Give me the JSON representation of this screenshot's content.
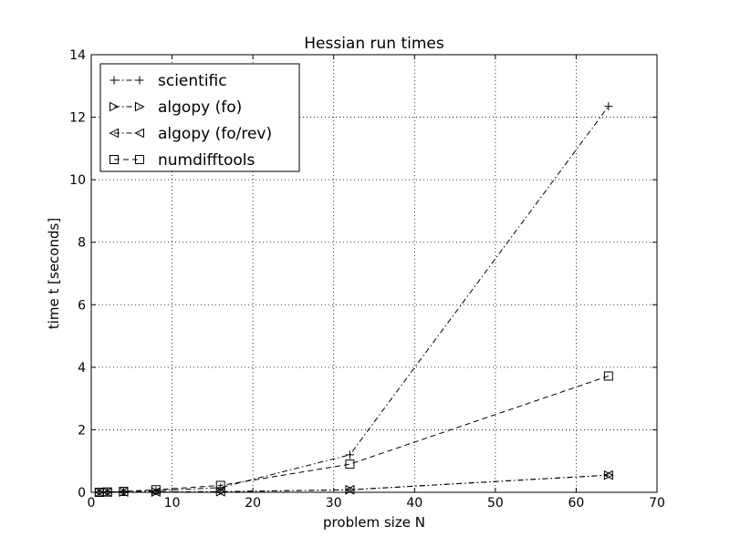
{
  "chart_data": {
    "type": "line",
    "title": "Hessian run times",
    "xlabel": "problem size N",
    "ylabel": "time t [seconds]",
    "xlim": [
      0,
      70
    ],
    "ylim": [
      0,
      14
    ],
    "xticks": [
      0,
      10,
      20,
      30,
      40,
      50,
      60,
      70
    ],
    "yticks": [
      0,
      2,
      4,
      6,
      8,
      10,
      12,
      14
    ],
    "grid": true,
    "legend_position": "upper-left",
    "x": [
      1,
      2,
      4,
      8,
      16,
      32,
      64
    ],
    "series": [
      {
        "name": "scientific",
        "marker": "plus",
        "linestyle": "dash-dot",
        "values": [
          0.0,
          0.01,
          0.02,
          0.05,
          0.15,
          1.2,
          12.35
        ]
      },
      {
        "name": "algopy (fo)",
        "marker": "triangle-right",
        "linestyle": "dash-dot",
        "values": [
          0.0,
          0.0,
          0.01,
          0.01,
          0.02,
          0.08,
          0.55
        ]
      },
      {
        "name": "algopy (fo/rev)",
        "marker": "triangle-left",
        "linestyle": "dash-dot",
        "values": [
          0.0,
          0.0,
          0.01,
          0.01,
          0.02,
          0.08,
          0.55
        ]
      },
      {
        "name": "numdifftools",
        "marker": "square",
        "linestyle": "dashed",
        "values": [
          0.0,
          0.01,
          0.03,
          0.08,
          0.22,
          0.9,
          3.72
        ]
      }
    ]
  }
}
